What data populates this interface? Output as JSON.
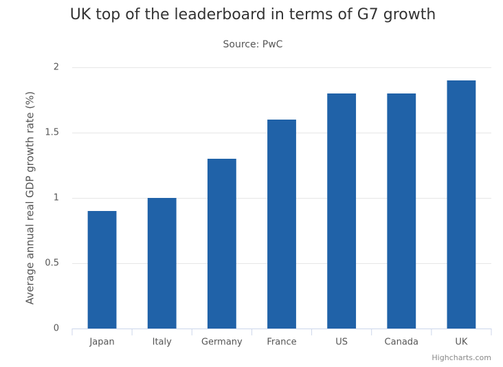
{
  "chart_data": {
    "type": "bar",
    "title": "UK top of the leaderboard in terms of G7 growth",
    "subtitle": "Source: PwC",
    "y_label": "Average annual real GDP growth rate (%)",
    "categories": [
      "Japan",
      "Italy",
      "Germany",
      "France",
      "US",
      "Canada",
      "UK"
    ],
    "values": [
      0.9,
      1.0,
      1.3,
      1.6,
      1.8,
      1.8,
      1.9
    ],
    "color": "#2062a8",
    "ylim": [
      0,
      2
    ],
    "yticks": [
      0,
      0.5,
      1,
      1.5,
      2
    ],
    "grid": true,
    "credit": "Highcharts.com"
  }
}
